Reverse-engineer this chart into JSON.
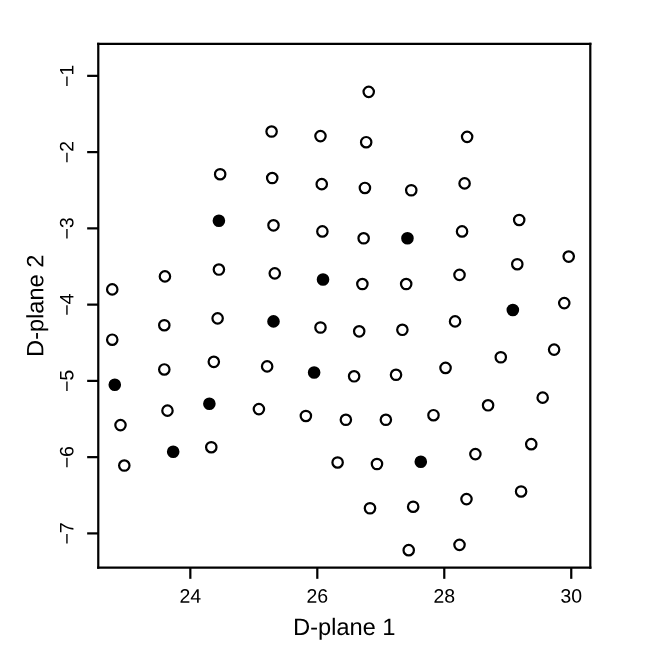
{
  "chart_data": {
    "type": "scatter",
    "xlabel": "D-plane 1",
    "ylabel": "D-plane 2",
    "xlim": [
      22.55,
      30.3
    ],
    "ylim": [
      -7.45,
      -0.58
    ],
    "xticks": [
      24,
      26,
      28,
      30
    ],
    "yticks": [
      -7,
      -6,
      -5,
      -4,
      -3,
      -2,
      -1
    ],
    "marker": "circle",
    "grid": false,
    "legend": false,
    "series": [
      {
        "color": "#000000",
        "x": [
          25.28,
          26.05,
          24.47,
          25.29,
          26.07,
          25.31,
          26.08,
          22.77,
          23.6,
          24.45,
          25.33,
          26.81,
          26.77,
          28.36,
          26.75,
          27.48,
          28.32,
          26.73,
          28.28,
          29.18,
          29.96,
          26.71,
          27.4,
          28.24,
          29.15,
          29.89,
          22.77,
          23.59,
          24.43,
          26.05,
          26.66,
          23.59,
          24.37,
          25.21,
          26.58,
          22.9,
          23.64,
          25.08,
          25.82,
          26.45,
          22.96,
          24.33,
          26.32,
          27.34,
          28.17,
          27.24,
          28.02,
          28.89,
          29.73,
          27.08,
          27.83,
          28.69,
          29.55,
          26.94,
          28.49,
          29.37,
          26.83,
          27.51,
          28.35,
          29.21,
          27.44,
          28.24
        ],
        "values": [
          -1.73,
          -1.79,
          -2.29,
          -2.34,
          -2.42,
          -2.96,
          -3.04,
          -3.8,
          -3.63,
          -3.54,
          -3.59,
          -1.21,
          -1.87,
          -1.8,
          -2.47,
          -2.5,
          -2.41,
          -3.13,
          -3.04,
          -2.89,
          -3.37,
          -3.73,
          -3.73,
          -3.61,
          -3.47,
          -3.98,
          -4.46,
          -4.27,
          -4.18,
          -4.3,
          -4.35,
          -4.85,
          -4.75,
          -4.81,
          -4.94,
          -5.58,
          -5.39,
          -5.37,
          -5.46,
          -5.51,
          -6.11,
          -5.87,
          -6.07,
          -4.33,
          -4.22,
          -4.92,
          -4.83,
          -4.69,
          -4.59,
          -5.51,
          -5.45,
          -5.32,
          -5.22,
          -6.09,
          -5.96,
          -5.83,
          -6.67,
          -6.65,
          -6.55,
          -6.45,
          -7.22,
          -7.15
        ]
      },
      {
        "color": "#000000",
        "x": [
          24.45,
          26.09,
          27.42,
          29.08,
          25.31,
          22.81,
          25.95,
          24.3,
          23.73,
          27.63
        ],
        "values": [
          -2.9,
          -3.67,
          -3.13,
          -4.07,
          -4.22,
          -5.05,
          -4.89,
          -5.3,
          -5.93,
          -6.06
        ]
      }
    ]
  }
}
